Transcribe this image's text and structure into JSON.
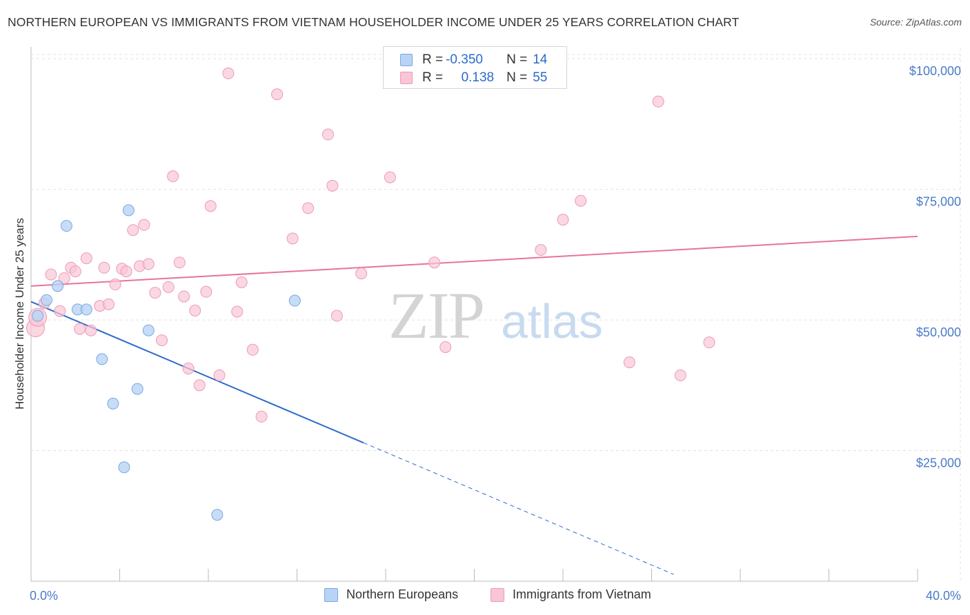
{
  "title": "NORTHERN EUROPEAN VS IMMIGRANTS FROM VIETNAM HOUSEHOLDER INCOME UNDER 25 YEARS CORRELATION CHART",
  "source": "Source: ZipAtlas.com",
  "watermark": {
    "zip": "ZIP",
    "atlas": "atlas"
  },
  "legend_box": {
    "row1": {
      "r_label": "R = ",
      "r_value": "-0.350",
      "n_label": "N = ",
      "n_value": "14"
    },
    "row2": {
      "r_label": "R = ",
      "r_value": "0.138",
      "n_label": "N = ",
      "n_value": "55"
    }
  },
  "bottom_legend": {
    "series1": "Northern Europeans",
    "series2": "Immigrants from Vietnam"
  },
  "colors": {
    "blue_fill": "#b8d3f5",
    "blue_stroke": "#7aa7e0",
    "blue_line": "#2a6acb",
    "pink_fill": "#f9c6d6",
    "pink_stroke": "#ec9ab4",
    "pink_line": "#e8739a",
    "grid": "#e2e2e2",
    "axis_text": "#4a7bc8"
  },
  "chart_data": {
    "type": "scatter",
    "title": "NORTHERN EUROPEAN VS IMMIGRANTS FROM VIETNAM HOUSEHOLDER INCOME UNDER 25 YEARS CORRELATION CHART",
    "xlabel": "",
    "ylabel": "Householder Income Under 25 years",
    "xlim": [
      0,
      40
    ],
    "ylim": [
      0,
      102000
    ],
    "x_tick_labels": [
      "0.0%",
      "40.0%"
    ],
    "y_ticks": [
      25000,
      50000,
      75000,
      100000
    ],
    "y_tick_labels": [
      "$25,000",
      "$50,000",
      "$75,000",
      "$100,000"
    ],
    "grid": true,
    "series": [
      {
        "name": "Northern Europeans",
        "r": -0.35,
        "n": 14,
        "trend": {
          "x0": 0,
          "y0": 53500,
          "x1": 15,
          "y1": 26500,
          "dash_to_x": 29
        },
        "points": [
          [
            0.3,
            50800
          ],
          [
            0.7,
            53800
          ],
          [
            1.2,
            56500
          ],
          [
            1.6,
            68000
          ],
          [
            2.1,
            52000
          ],
          [
            2.5,
            52000
          ],
          [
            3.2,
            42500
          ],
          [
            3.7,
            34000
          ],
          [
            4.2,
            21800
          ],
          [
            4.4,
            71000
          ],
          [
            4.8,
            36800
          ],
          [
            5.3,
            48000
          ],
          [
            8.4,
            12700
          ],
          [
            11.9,
            53700
          ]
        ]
      },
      {
        "name": "Immigrants from Vietnam",
        "r": 0.138,
        "n": 55,
        "trend": {
          "x0": 0,
          "y0": 56500,
          "x1": 40,
          "y1": 66000
        },
        "points": [
          [
            0.2,
            48500
          ],
          [
            0.3,
            50500
          ],
          [
            0.6,
            53200
          ],
          [
            0.9,
            58700
          ],
          [
            1.3,
            51700
          ],
          [
            1.5,
            58000
          ],
          [
            1.8,
            60000
          ],
          [
            2.0,
            59300
          ],
          [
            2.2,
            48300
          ],
          [
            2.5,
            61800
          ],
          [
            2.7,
            48000
          ],
          [
            3.1,
            52700
          ],
          [
            3.3,
            60000
          ],
          [
            3.5,
            53000
          ],
          [
            3.8,
            56800
          ],
          [
            4.1,
            59800
          ],
          [
            4.3,
            59300
          ],
          [
            4.6,
            67200
          ],
          [
            4.9,
            60300
          ],
          [
            5.1,
            68200
          ],
          [
            5.3,
            60700
          ],
          [
            5.6,
            55200
          ],
          [
            5.9,
            46100
          ],
          [
            6.2,
            56300
          ],
          [
            6.4,
            77500
          ],
          [
            6.7,
            61000
          ],
          [
            6.9,
            54500
          ],
          [
            7.1,
            40700
          ],
          [
            7.4,
            51800
          ],
          [
            7.6,
            37500
          ],
          [
            7.9,
            55400
          ],
          [
            8.1,
            71800
          ],
          [
            8.5,
            39400
          ],
          [
            8.9,
            97200
          ],
          [
            9.3,
            51600
          ],
          [
            9.5,
            57200
          ],
          [
            10.0,
            44300
          ],
          [
            10.4,
            31500
          ],
          [
            11.1,
            93200
          ],
          [
            11.8,
            65600
          ],
          [
            12.5,
            71400
          ],
          [
            13.4,
            85500
          ],
          [
            13.6,
            75700
          ],
          [
            13.8,
            50800
          ],
          [
            14.9,
            58900
          ],
          [
            16.2,
            77300
          ],
          [
            18.2,
            61000
          ],
          [
            18.7,
            44800
          ],
          [
            23.0,
            63400
          ],
          [
            24.0,
            69200
          ],
          [
            24.8,
            72800
          ],
          [
            27.0,
            41900
          ],
          [
            28.3,
            91800
          ],
          [
            29.3,
            39400
          ],
          [
            30.6,
            45700
          ]
        ]
      }
    ]
  }
}
